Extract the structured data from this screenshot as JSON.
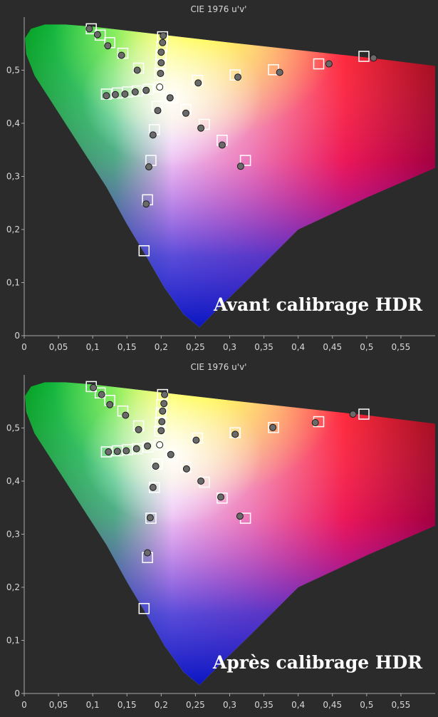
{
  "chart_data": [
    {
      "type": "scatter",
      "title": "CIE 1976 u'v'",
      "caption": "Avant calibrage HDR",
      "xlim": [
        0,
        0.6
      ],
      "ylim": [
        0,
        0.6
      ],
      "x_ticks": [
        "0",
        "0,05",
        "0,1",
        "0,15",
        "0,2",
        "0,25",
        "0,3",
        "0,35",
        "0,4",
        "0,45",
        "0,5",
        "0,55"
      ],
      "y_ticks": [
        "0",
        "0,1",
        "0,2",
        "0,3",
        "0,4",
        "0,5"
      ],
      "grid": false,
      "series": [
        {
          "marker": "square",
          "points": [
            [
              0.098,
              0.578
            ],
            [
              0.111,
              0.566
            ],
            [
              0.125,
              0.552
            ],
            [
              0.144,
              0.532
            ],
            [
              0.167,
              0.504
            ],
            [
              0.1978,
              0.4683
            ],
            [
              0.12,
              0.455
            ],
            [
              0.136,
              0.457
            ],
            [
              0.151,
              0.459
            ],
            [
              0.165,
              0.461
            ],
            [
              0.181,
              0.464
            ],
            [
              0.202,
              0.563
            ],
            [
              0.201,
              0.544
            ],
            [
              0.2,
              0.528
            ],
            [
              0.199,
              0.511
            ],
            [
              0.198,
              0.494
            ],
            [
              0.253,
              0.481
            ],
            [
              0.308,
              0.491
            ],
            [
              0.364,
              0.501
            ],
            [
              0.43,
              0.512
            ],
            [
              0.496,
              0.526
            ],
            [
              0.215,
              0.448
            ],
            [
              0.236,
              0.426
            ],
            [
              0.263,
              0.398
            ],
            [
              0.289,
              0.368
            ],
            [
              0.323,
              0.33
            ],
            [
              0.194,
              0.432
            ],
            [
              0.19,
              0.388
            ],
            [
              0.185,
              0.33
            ],
            [
              0.18,
              0.256
            ],
            [
              0.175,
              0.16
            ]
          ]
        },
        {
          "marker": "circle",
          "points": [
            [
              0.095,
              0.578
            ],
            [
              0.107,
              0.567
            ],
            [
              0.122,
              0.546
            ],
            [
              0.142,
              0.528
            ],
            [
              0.165,
              0.5
            ],
            [
              0.1978,
              0.4683
            ],
            [
              0.12,
              0.452
            ],
            [
              0.133,
              0.454
            ],
            [
              0.147,
              0.455
            ],
            [
              0.162,
              0.459
            ],
            [
              0.178,
              0.462
            ],
            [
              0.203,
              0.565
            ],
            [
              0.202,
              0.552
            ],
            [
              0.2,
              0.534
            ],
            [
              0.2,
              0.514
            ],
            [
              0.199,
              0.494
            ],
            [
              0.254,
              0.476
            ],
            [
              0.312,
              0.487
            ],
            [
              0.373,
              0.496
            ],
            [
              0.445,
              0.512
            ],
            [
              0.51,
              0.523
            ],
            [
              0.213,
              0.448
            ],
            [
              0.236,
              0.419
            ],
            [
              0.258,
              0.391
            ],
            [
              0.289,
              0.359
            ],
            [
              0.316,
              0.319
            ],
            [
              0.195,
              0.424
            ],
            [
              0.188,
              0.378
            ],
            [
              0.182,
              0.318
            ],
            [
              0.178,
              0.248
            ]
          ]
        }
      ]
    },
    {
      "type": "scatter",
      "title": "CIE 1976 u'v'",
      "caption": "Après calibrage HDR",
      "xlim": [
        0,
        0.6
      ],
      "ylim": [
        0,
        0.6
      ],
      "x_ticks": [
        "0",
        "0,05",
        "0,1",
        "0,15",
        "0,2",
        "0,25",
        "0,3",
        "0,35",
        "0,4",
        "0,45",
        "0,5",
        "0,55"
      ],
      "y_ticks": [
        "0",
        "0,1",
        "0,2",
        "0,3",
        "0,4",
        "0,5"
      ],
      "grid": false,
      "series": [
        {
          "marker": "square",
          "points": [
            [
              0.098,
              0.578
            ],
            [
              0.111,
              0.566
            ],
            [
              0.125,
              0.552
            ],
            [
              0.144,
              0.532
            ],
            [
              0.167,
              0.504
            ],
            [
              0.1978,
              0.4683
            ],
            [
              0.12,
              0.455
            ],
            [
              0.136,
              0.457
            ],
            [
              0.151,
              0.459
            ],
            [
              0.165,
              0.461
            ],
            [
              0.181,
              0.464
            ],
            [
              0.202,
              0.563
            ],
            [
              0.201,
              0.544
            ],
            [
              0.2,
              0.528
            ],
            [
              0.199,
              0.511
            ],
            [
              0.198,
              0.494
            ],
            [
              0.253,
              0.481
            ],
            [
              0.308,
              0.491
            ],
            [
              0.364,
              0.501
            ],
            [
              0.43,
              0.512
            ],
            [
              0.496,
              0.526
            ],
            [
              0.215,
              0.448
            ],
            [
              0.236,
              0.426
            ],
            [
              0.263,
              0.398
            ],
            [
              0.289,
              0.368
            ],
            [
              0.323,
              0.33
            ],
            [
              0.194,
              0.432
            ],
            [
              0.19,
              0.388
            ],
            [
              0.185,
              0.33
            ],
            [
              0.18,
              0.256
            ],
            [
              0.175,
              0.16
            ]
          ]
        },
        {
          "marker": "circle",
          "points": [
            [
              0.101,
              0.576
            ],
            [
              0.113,
              0.563
            ],
            [
              0.125,
              0.544
            ],
            [
              0.148,
              0.524
            ],
            [
              0.167,
              0.497
            ],
            [
              0.1978,
              0.4683
            ],
            [
              0.123,
              0.455
            ],
            [
              0.136,
              0.456
            ],
            [
              0.149,
              0.457
            ],
            [
              0.164,
              0.461
            ],
            [
              0.18,
              0.466
            ],
            [
              0.205,
              0.563
            ],
            [
              0.204,
              0.546
            ],
            [
              0.202,
              0.532
            ],
            [
              0.201,
              0.512
            ],
            [
              0.2,
              0.495
            ],
            [
              0.251,
              0.477
            ],
            [
              0.308,
              0.488
            ],
            [
              0.363,
              0.501
            ],
            [
              0.425,
              0.51
            ],
            [
              0.48,
              0.526
            ],
            [
              0.214,
              0.45
            ],
            [
              0.237,
              0.423
            ],
            [
              0.258,
              0.4
            ],
            [
              0.287,
              0.37
            ],
            [
              0.315,
              0.334
            ],
            [
              0.192,
              0.428
            ],
            [
              0.188,
              0.388
            ],
            [
              0.184,
              0.331
            ],
            [
              0.18,
              0.265
            ]
          ]
        }
      ]
    }
  ]
}
